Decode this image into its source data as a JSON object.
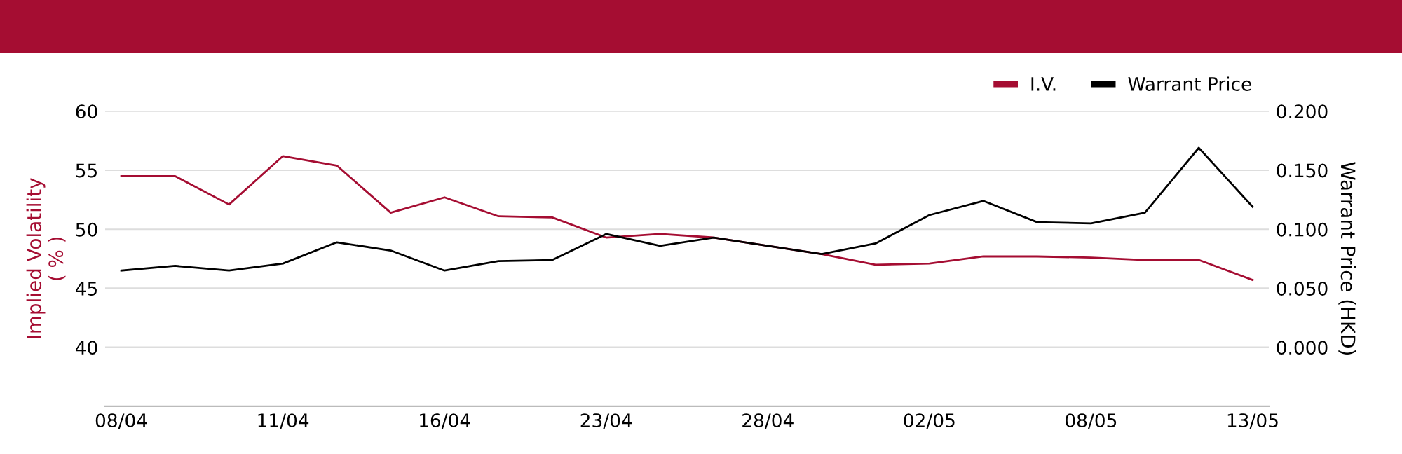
{
  "chart_data": {
    "type": "line",
    "categories": [
      "08/04",
      null,
      null,
      "11/04",
      null,
      null,
      "16/04",
      null,
      null,
      "23/04",
      null,
      null,
      "28/04",
      null,
      null,
      "02/05",
      null,
      null,
      "08/05",
      null,
      null,
      "13/05"
    ],
    "series": [
      {
        "name": "I.V.",
        "color": "#a50d32",
        "values": [
          54.5,
          54.5,
          52.1,
          56.2,
          55.4,
          51.4,
          52.7,
          51.1,
          51.0,
          49.3,
          49.6,
          49.3,
          48.6,
          47.9,
          47.0,
          47.1,
          47.7,
          47.7,
          47.6,
          47.4,
          47.4,
          45.7
        ]
      },
      {
        "name": "Warrant Price",
        "color": "#000000",
        "axis": "y2",
        "values": [
          0.065,
          0.069,
          0.065,
          0.071,
          0.089,
          0.082,
          0.065,
          0.073,
          0.074,
          0.096,
          0.086,
          0.093,
          0.086,
          0.079,
          0.088,
          0.112,
          0.124,
          0.106,
          0.105,
          0.114,
          0.169,
          0.119
        ]
      }
    ],
    "ylabel": "Implied Volatility\n( % )",
    "y2label": "Warrant Price (HKD)",
    "ylim": [
      35,
      60
    ],
    "yticks": [
      40,
      45,
      50,
      55,
      60
    ],
    "y2lim": [
      -0.05,
      0.2
    ],
    "y2ticks": [
      {
        "value": 0,
        "label": "0.000"
      },
      {
        "value": 0.05,
        "label": "0.050"
      },
      {
        "value": 0.1,
        "label": "0.100"
      },
      {
        "value": 0.15,
        "label": "0.150"
      },
      {
        "value": 0.2,
        "label": "0.200"
      }
    ],
    "grid": "y",
    "legend": "top right",
    "marker": "none",
    "line_style": "solid"
  }
}
